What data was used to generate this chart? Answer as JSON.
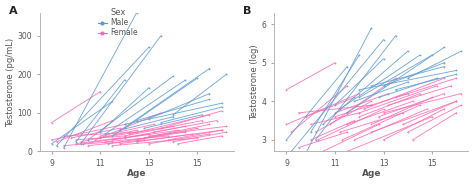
{
  "panel_A": {
    "label": "A",
    "ylabel": "Testosterone (pg/mL)",
    "xlabel": "Age",
    "xlim": [
      8.5,
      16.5
    ],
    "ylim": [
      0,
      360
    ],
    "yticks": [
      0,
      100,
      200,
      300
    ],
    "xticks": [
      9,
      11,
      13,
      15
    ]
  },
  "panel_B": {
    "label": "B",
    "ylabel": "Testosterone (log)",
    "xlabel": "Age",
    "xlim": [
      8.5,
      16.5
    ],
    "ylim": [
      2.7,
      6.3
    ],
    "yticks": [
      3,
      4,
      5,
      6
    ],
    "xticks": [
      9,
      11,
      13,
      15
    ]
  },
  "male_color": "#5B9BD5",
  "female_color": "#FF69B4",
  "male_lines_A": [
    [
      9.0,
      20,
      11.5,
      130
    ],
    [
      9.2,
      15,
      13.0,
      270
    ],
    [
      9.5,
      10,
      12.5,
      360
    ],
    [
      10.0,
      25,
      12.0,
      185
    ],
    [
      10.2,
      20,
      13.5,
      300
    ],
    [
      10.5,
      30,
      14.0,
      195
    ],
    [
      11.0,
      50,
      13.0,
      165
    ],
    [
      11.2,
      45,
      14.5,
      185
    ],
    [
      11.5,
      40,
      15.5,
      215
    ],
    [
      11.8,
      55,
      14.0,
      90
    ],
    [
      12.0,
      60,
      15.0,
      190
    ],
    [
      12.0,
      70,
      16.0,
      125
    ],
    [
      12.5,
      80,
      15.5,
      135
    ],
    [
      12.8,
      60,
      15.2,
      95
    ],
    [
      13.0,
      85,
      15.5,
      150
    ],
    [
      13.5,
      75,
      16.0,
      115
    ],
    [
      14.0,
      95,
      16.2,
      200
    ]
  ],
  "female_lines_A": [
    [
      9.0,
      75,
      11.0,
      155
    ],
    [
      9.0,
      30,
      12.0,
      70
    ],
    [
      9.2,
      25,
      11.5,
      80
    ],
    [
      9.5,
      15,
      11.5,
      25
    ],
    [
      9.5,
      40,
      12.5,
      50
    ],
    [
      9.8,
      35,
      11.8,
      60
    ],
    [
      10.0,
      20,
      11.8,
      35
    ],
    [
      10.0,
      30,
      12.0,
      40
    ],
    [
      10.2,
      25,
      12.5,
      55
    ],
    [
      10.3,
      20,
      13.0,
      45
    ],
    [
      10.5,
      15,
      12.8,
      30
    ],
    [
      10.8,
      30,
      13.5,
      100
    ],
    [
      11.0,
      40,
      13.2,
      70
    ],
    [
      11.0,
      35,
      14.0,
      65
    ],
    [
      11.2,
      25,
      13.8,
      40
    ],
    [
      11.3,
      20,
      14.5,
      50
    ],
    [
      11.5,
      30,
      14.2,
      55
    ],
    [
      11.5,
      15,
      15.0,
      35
    ],
    [
      11.8,
      20,
      14.8,
      45
    ],
    [
      12.0,
      35,
      14.5,
      65
    ],
    [
      12.0,
      40,
      15.2,
      80
    ],
    [
      12.2,
      45,
      15.5,
      95
    ],
    [
      12.5,
      30,
      15.0,
      60
    ],
    [
      12.5,
      25,
      16.0,
      55
    ],
    [
      12.8,
      35,
      15.5,
      70
    ],
    [
      13.0,
      20,
      15.5,
      45
    ],
    [
      13.0,
      40,
      16.2,
      65
    ],
    [
      13.2,
      50,
      15.8,
      80
    ],
    [
      13.5,
      60,
      16.0,
      105
    ],
    [
      13.8,
      30,
      16.0,
      55
    ],
    [
      14.0,
      25,
      16.2,
      50
    ],
    [
      14.2,
      20,
      16.0,
      40
    ]
  ],
  "male_lines_B": [
    [
      9.0,
      3.0,
      11.5,
      4.9
    ],
    [
      9.2,
      2.7,
      13.0,
      5.6
    ],
    [
      9.5,
      2.3,
      12.5,
      5.9
    ],
    [
      10.0,
      3.2,
      12.0,
      5.2
    ],
    [
      10.2,
      3.0,
      13.5,
      5.7
    ],
    [
      10.5,
      3.4,
      14.0,
      5.3
    ],
    [
      11.0,
      3.9,
      13.0,
      5.1
    ],
    [
      11.2,
      3.8,
      14.5,
      5.2
    ],
    [
      11.5,
      3.7,
      15.5,
      5.4
    ],
    [
      11.8,
      4.0,
      14.0,
      4.5
    ],
    [
      12.0,
      4.1,
      15.0,
      5.2
    ],
    [
      12.0,
      4.3,
      16.0,
      4.8
    ],
    [
      12.5,
      4.4,
      15.5,
      4.9
    ],
    [
      12.8,
      4.1,
      15.2,
      4.6
    ],
    [
      13.0,
      4.4,
      15.5,
      5.0
    ],
    [
      13.5,
      4.3,
      16.0,
      4.7
    ],
    [
      14.0,
      4.6,
      16.2,
      5.3
    ]
  ],
  "female_lines_B": [
    [
      9.0,
      4.3,
      11.0,
      5.0
    ],
    [
      9.0,
      3.4,
      12.0,
      4.2
    ],
    [
      9.2,
      3.2,
      11.5,
      4.4
    ],
    [
      9.5,
      2.8,
      11.5,
      3.2
    ],
    [
      9.5,
      3.7,
      12.5,
      3.9
    ],
    [
      9.8,
      3.6,
      11.8,
      4.1
    ],
    [
      10.0,
      3.0,
      11.8,
      3.5
    ],
    [
      10.0,
      3.4,
      12.0,
      3.7
    ],
    [
      10.2,
      3.2,
      12.5,
      4.0
    ],
    [
      10.3,
      3.0,
      13.0,
      3.8
    ],
    [
      10.5,
      2.7,
      12.8,
      3.4
    ],
    [
      10.8,
      3.4,
      13.5,
      4.6
    ],
    [
      11.0,
      3.7,
      13.2,
      4.2
    ],
    [
      11.0,
      3.6,
      14.0,
      4.2
    ],
    [
      11.2,
      3.2,
      13.8,
      3.7
    ],
    [
      11.3,
      3.0,
      14.5,
      3.9
    ],
    [
      11.5,
      3.4,
      14.2,
      4.0
    ],
    [
      11.5,
      2.7,
      15.0,
      3.6
    ],
    [
      11.8,
      3.0,
      14.8,
      3.8
    ],
    [
      12.0,
      3.6,
      14.5,
      4.2
    ],
    [
      12.0,
      3.7,
      15.2,
      4.4
    ],
    [
      12.2,
      3.8,
      15.5,
      4.6
    ],
    [
      12.5,
      3.4,
      15.0,
      4.1
    ],
    [
      12.5,
      3.2,
      16.0,
      4.0
    ],
    [
      12.8,
      3.6,
      15.5,
      4.2
    ],
    [
      13.0,
      3.0,
      15.5,
      3.8
    ],
    [
      13.0,
      3.7,
      16.2,
      4.2
    ],
    [
      13.2,
      3.9,
      15.8,
      4.4
    ],
    [
      13.5,
      4.1,
      16.0,
      4.6
    ],
    [
      13.8,
      3.4,
      16.0,
      4.0
    ],
    [
      14.0,
      3.2,
      16.2,
      3.9
    ],
    [
      14.2,
      3.0,
      16.0,
      3.7
    ]
  ],
  "legend_title": "Sex",
  "legend_male": "Male",
  "legend_female": "Female",
  "bg_color": "#FFFFFF",
  "fontsize": 6.5,
  "label_fontsize": 8,
  "tick_color": "#AAAAAA",
  "spine_color": "#AAAAAA",
  "text_color": "#555555"
}
